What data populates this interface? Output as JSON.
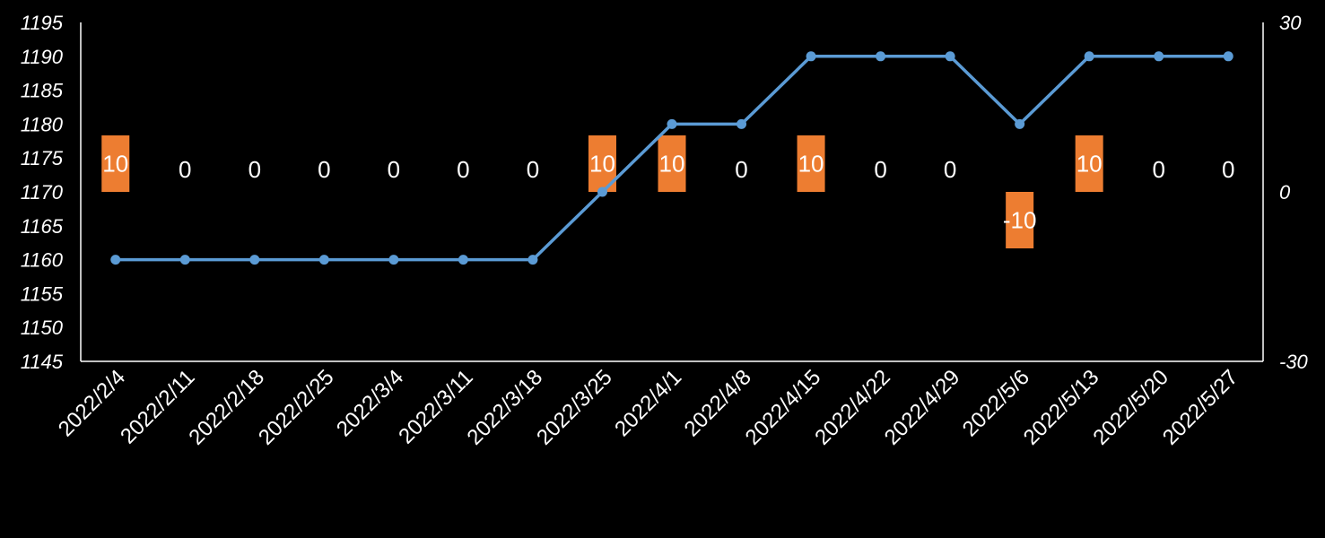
{
  "chart_data": {
    "type": "bar",
    "title": "",
    "xlabel": "",
    "ylabel": "",
    "categories": [
      "2022/2/4",
      "2022/2/11",
      "2022/2/18",
      "2022/2/25",
      "2022/3/4",
      "2022/3/11",
      "2022/3/18",
      "2022/3/25",
      "2022/4/1",
      "2022/4/8",
      "2022/4/15",
      "2022/4/22",
      "2022/4/29",
      "2022/5/6",
      "2022/5/13",
      "2022/5/20",
      "2022/5/27"
    ],
    "series": [
      {
        "type": "line",
        "axis": "left",
        "color": "#5B9BD5",
        "values": [
          1160,
          1160,
          1160,
          1160,
          1160,
          1160,
          1160,
          1170,
          1180,
          1180,
          1190,
          1190,
          1190,
          1180,
          1190,
          1190,
          1190
        ]
      },
      {
        "type": "bar",
        "axis": "right",
        "color": "#ED7D31",
        "values": [
          10,
          0,
          0,
          0,
          0,
          0,
          0,
          10,
          10,
          0,
          10,
          0,
          0,
          -10,
          10,
          0,
          0
        ],
        "labels": [
          "10",
          "0",
          "0",
          "0",
          "0",
          "0",
          "0",
          "10",
          "10",
          "0",
          "10",
          "0",
          "0",
          "-10",
          "10",
          "0",
          "0"
        ]
      }
    ],
    "y_left": {
      "range": [
        1145,
        1195
      ],
      "ticks": [
        "1145",
        "1150",
        "1155",
        "1160",
        "1165",
        "1170",
        "1175",
        "1180",
        "1185",
        "1190",
        "1195"
      ]
    },
    "y_right": {
      "range": [
        -30,
        30
      ],
      "ticks": [
        "-30",
        "0",
        "30"
      ]
    },
    "grid": false,
    "legend": "none",
    "background": "#000000"
  }
}
